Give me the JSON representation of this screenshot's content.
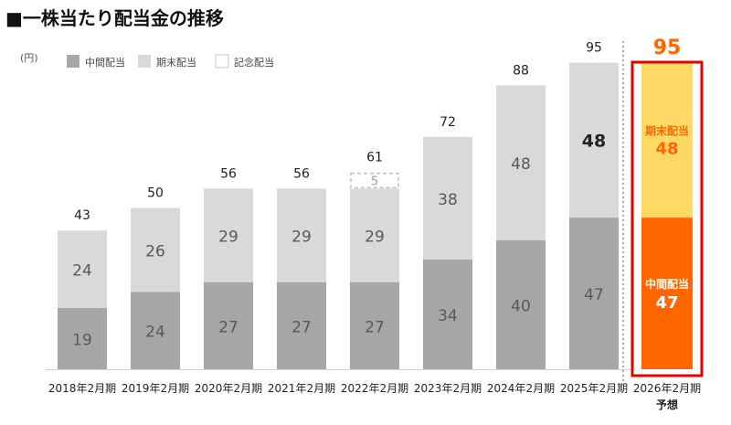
{
  "title": "■一株当たり配当金の推移",
  "chart_data": {
    "type": "bar",
    "stacked": true,
    "title": "■一株当たり配当金の推移",
    "ylabel": "(円)",
    "xlabel": "",
    "ylim": [
      0,
      100
    ],
    "grid": false,
    "legend_position": "top-left",
    "legend": [
      {
        "key": "interim",
        "label": "中間配当",
        "color": "#a6a6a6"
      },
      {
        "key": "year_end",
        "label": "期末配当",
        "color": "#d9d9d9"
      },
      {
        "key": "commemorative",
        "label": "記念配当",
        "color": "#ffffff"
      }
    ],
    "categories": [
      "2018年2月期",
      "2019年2月期",
      "2020年2月期",
      "2021年2月期",
      "2022年2月期",
      "2023年2月期",
      "2024年2月期",
      "2025年2月期",
      "2026年2月期"
    ],
    "series": [
      {
        "name": "中間配当",
        "key": "interim",
        "values": [
          19,
          24,
          27,
          27,
          27,
          34,
          40,
          47,
          47
        ]
      },
      {
        "name": "期末配当",
        "key": "year_end",
        "values": [
          24,
          26,
          29,
          29,
          29,
          38,
          48,
          48,
          48
        ]
      },
      {
        "name": "記念配当",
        "key": "commemorative",
        "values": [
          0,
          0,
          0,
          0,
          5,
          0,
          0,
          0,
          0
        ]
      }
    ],
    "totals": [
      43,
      50,
      56,
      56,
      61,
      72,
      88,
      95,
      95
    ],
    "forecast": {
      "category_index": 8,
      "category_sub_label": "予想",
      "interim_label": "中間配当",
      "interim_value": 47,
      "year_end_label": "期末配当",
      "year_end_value": 48,
      "total": 95,
      "colors": {
        "interim": "#ff6600",
        "year_end": "#ffd966",
        "frame": "#e60000",
        "total_text": "#ff6600",
        "interim_text": "#ffffff",
        "year_end_text": "#ff6600"
      }
    },
    "colors": {
      "interim": "#a6a6a6",
      "year_end": "#d9d9d9",
      "value_text": "#595959",
      "total_text": "#222222"
    }
  }
}
